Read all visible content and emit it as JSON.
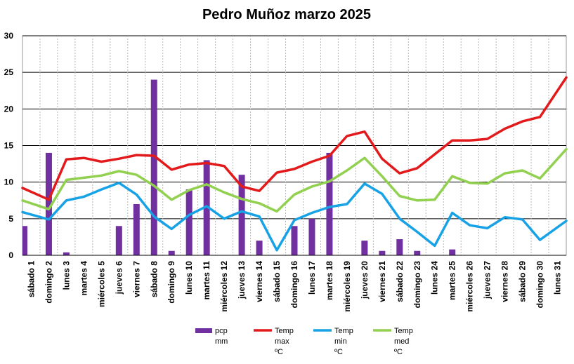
{
  "chart_data": {
    "type": "bar",
    "title": "Pedro Muñoz marzo 2025",
    "xlabel": "",
    "ylabel": "",
    "ylim": [
      0,
      30
    ],
    "yticks": [
      0,
      5,
      10,
      15,
      20,
      25,
      30
    ],
    "grid": true,
    "legend_position": "bottom",
    "categories": [
      "sábado 1",
      "domingo 2",
      "lunes 3",
      "martes 4",
      "miércoles 5",
      "jueves 6",
      "viernes 7",
      "sábado 8",
      "domingo 9",
      "lunes 10",
      "martes 11",
      "miércoles 12",
      "jueves 13",
      "viernes 14",
      "sábado 15",
      "domingo 16",
      "lunes 17",
      "martes 18",
      "miércoles 19",
      "jueves 20",
      "viernes 21",
      "sábado 22",
      "domingo 23",
      "lunes 24",
      "martes 25",
      "miércoles 26",
      "jueves 27",
      "viernes 28",
      "sábado 29",
      "domingo 30",
      "lunes 31"
    ],
    "series": [
      {
        "name": "pcp mm",
        "kind": "bar",
        "color": "#7030a0",
        "legend_lines": [
          "pcp",
          "mm"
        ],
        "values": [
          4.0,
          14.0,
          0.4,
          0,
          0,
          4.0,
          7.0,
          24.0,
          0.6,
          9.0,
          13.0,
          0,
          11.0,
          2.0,
          0,
          4.0,
          5.0,
          14.0,
          0,
          2.0,
          0.6,
          2.2,
          0.6,
          0,
          0.8,
          0,
          0,
          0,
          0,
          0,
          0
        ]
      },
      {
        "name": "Temp max ºC",
        "kind": "line",
        "color": "#e31a1c",
        "legend_lines": [
          "Temp",
          "max",
          "ºC"
        ],
        "values": [
          9.2,
          7.6,
          13.1,
          13.3,
          12.8,
          13.2,
          13.7,
          13.6,
          11.7,
          12.4,
          12.6,
          12.2,
          9.4,
          8.8,
          11.3,
          11.8,
          12.8,
          13.6,
          16.3,
          16.9,
          13.2,
          11.2,
          11.9,
          13.8,
          15.7,
          15.7,
          15.9,
          17.3,
          18.3,
          18.9,
          24.3
        ]
      },
      {
        "name": "Temp min ºC",
        "kind": "line",
        "color": "#17a2e6",
        "legend_lines": [
          "Temp",
          "min",
          "ºC"
        ],
        "values": [
          5.9,
          4.9,
          7.5,
          8.0,
          9.0,
          9.9,
          8.3,
          5.3,
          3.6,
          5.5,
          6.7,
          5.0,
          6.0,
          5.3,
          0.7,
          4.8,
          5.8,
          6.6,
          7.0,
          9.8,
          8.4,
          5.0,
          3.2,
          1.3,
          5.8,
          4.1,
          3.7,
          5.2,
          4.9,
          2.1,
          4.7
        ]
      },
      {
        "name": "Temp med ºC",
        "kind": "line",
        "color": "#92d050",
        "legend_lines": [
          "Temp",
          "med",
          "ºC"
        ],
        "values": [
          7.5,
          6.3,
          10.3,
          10.6,
          10.9,
          11.5,
          11.0,
          9.5,
          7.6,
          8.9,
          9.7,
          8.6,
          7.7,
          7.1,
          6.0,
          8.3,
          9.4,
          10.1,
          11.6,
          13.3,
          10.8,
          8.1,
          7.5,
          7.6,
          10.8,
          9.9,
          9.8,
          11.2,
          11.6,
          10.5,
          14.5
        ]
      }
    ]
  }
}
